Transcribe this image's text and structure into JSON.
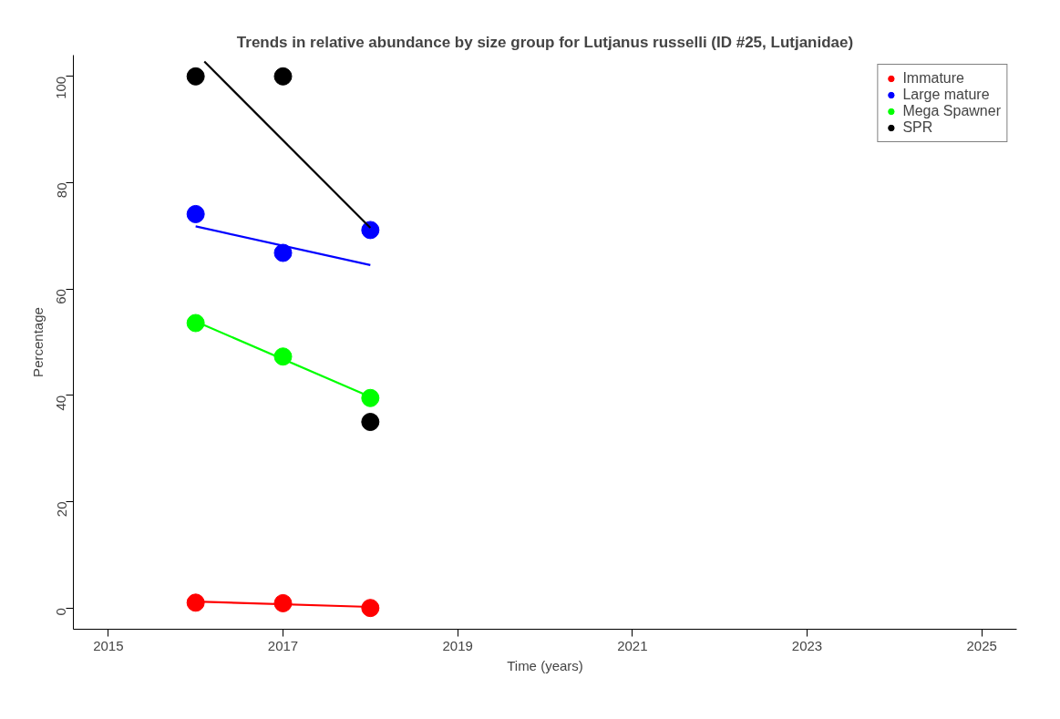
{
  "chart_data": {
    "type": "scatter",
    "title": "Trends in relative abundance by size group for Lutjanus russelli (ID #25, Lutjanidae)",
    "xlabel": "Time (years)",
    "ylabel": "Percentage",
    "x": [
      2016,
      2017,
      2018
    ],
    "series": [
      {
        "name": "Immature",
        "color": "#ff0000",
        "marker": "circle",
        "values": [
          1.0,
          0.9,
          0
        ]
      },
      {
        "name": "Large mature",
        "color": "#0000ff",
        "marker": "circle",
        "values": [
          74.1,
          66.8,
          71.1
        ]
      },
      {
        "name": "Mega Spawner",
        "color": "#00ff00",
        "marker": "circle",
        "values": [
          53.6,
          47.3,
          39.5
        ]
      },
      {
        "name": "SPR",
        "color": "#000000",
        "marker": "circle",
        "values": [
          100,
          100,
          35
        ]
      },
      {
        "type": "line",
        "color": "#ff0000",
        "marker": "none",
        "x": [
          2016,
          2018
        ],
        "values": [
          1.2,
          0.2
        ]
      },
      {
        "type": "line",
        "color": "#0000ff",
        "marker": "none",
        "x": [
          2016,
          2018
        ],
        "values": [
          71.8,
          64.5
        ]
      },
      {
        "type": "line",
        "color": "#00ff00",
        "marker": "none",
        "x": [
          2016,
          2018
        ],
        "values": [
          53.9,
          39.7
        ]
      },
      {
        "type": "line",
        "color": "#000000",
        "marker": "none",
        "x": [
          2016.1,
          2018
        ],
        "values": [
          102.8,
          71.5
        ]
      }
    ],
    "xlim": [
      2014.6,
      2025.4
    ],
    "ylim": [
      -4,
      104
    ],
    "xticks": [
      2015,
      2017,
      2019,
      2021,
      2023,
      2025
    ],
    "yticks": [
      0,
      20,
      40,
      60,
      80,
      100
    ],
    "grid": false,
    "legend": "top right"
  }
}
